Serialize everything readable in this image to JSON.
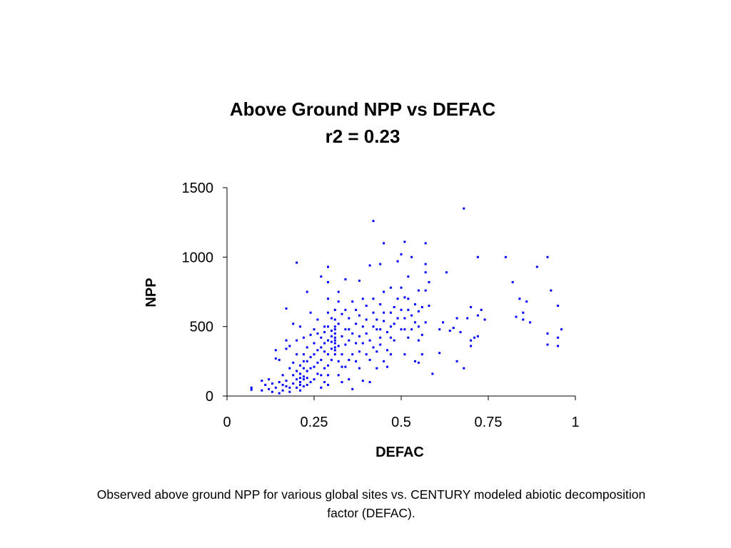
{
  "caption": "Observed above ground NPP for various global sites vs. CENTURY modeled abiotic decomposition factor (DEFAC).",
  "chart_data": {
    "type": "scatter",
    "title": "Above Ground NPP vs DEFAC",
    "subtitle": "r2 = 0.23",
    "xlabel": "DEFAC",
    "ylabel": "NPP",
    "xlim": [
      0,
      1
    ],
    "ylim": [
      0,
      1500
    ],
    "xticks": [
      "0",
      "0.25",
      "0.5",
      "0.75",
      "1"
    ],
    "yticks": [
      "0",
      "500",
      "1000",
      "1500"
    ],
    "grid": false,
    "legend": "none",
    "marker_color": "#0000ff",
    "series": [
      {
        "points": [
          [
            0.07,
            60
          ],
          [
            0.07,
            45
          ],
          [
            0.1,
            40
          ],
          [
            0.1,
            110
          ],
          [
            0.11,
            80
          ],
          [
            0.12,
            50
          ],
          [
            0.12,
            120
          ],
          [
            0.13,
            30
          ],
          [
            0.13,
            90
          ],
          [
            0.14,
            330
          ],
          [
            0.14,
            270
          ],
          [
            0.14,
            60
          ],
          [
            0.15,
            260
          ],
          [
            0.15,
            100
          ],
          [
            0.15,
            20
          ],
          [
            0.16,
            80
          ],
          [
            0.16,
            150
          ],
          [
            0.16,
            40
          ],
          [
            0.17,
            70
          ],
          [
            0.17,
            110
          ],
          [
            0.17,
            400
          ],
          [
            0.17,
            340
          ],
          [
            0.17,
            630
          ],
          [
            0.18,
            360
          ],
          [
            0.18,
            60
          ],
          [
            0.18,
            200
          ],
          [
            0.18,
            30
          ],
          [
            0.19,
            520
          ],
          [
            0.19,
            150
          ],
          [
            0.19,
            240
          ],
          [
            0.19,
            90
          ],
          [
            0.2,
            960
          ],
          [
            0.2,
            300
          ],
          [
            0.2,
            180
          ],
          [
            0.2,
            120
          ],
          [
            0.2,
            60
          ],
          [
            0.2,
            400
          ],
          [
            0.21,
            500
          ],
          [
            0.21,
            100
          ],
          [
            0.21,
            220
          ],
          [
            0.21,
            160
          ],
          [
            0.21,
            40
          ],
          [
            0.21,
            80
          ],
          [
            0.21,
            130
          ],
          [
            0.22,
            140
          ],
          [
            0.22,
            200
          ],
          [
            0.22,
            70
          ],
          [
            0.22,
            300
          ],
          [
            0.22,
            420
          ],
          [
            0.22,
            120
          ],
          [
            0.22,
            250
          ],
          [
            0.23,
            750
          ],
          [
            0.23,
            250
          ],
          [
            0.23,
            130
          ],
          [
            0.23,
            80
          ],
          [
            0.23,
            350
          ],
          [
            0.23,
            180
          ],
          [
            0.24,
            600
          ],
          [
            0.24,
            200
          ],
          [
            0.24,
            440
          ],
          [
            0.24,
            100
          ],
          [
            0.24,
            280
          ],
          [
            0.25,
            480
          ],
          [
            0.25,
            380
          ],
          [
            0.25,
            120
          ],
          [
            0.25,
            210
          ],
          [
            0.25,
            300
          ],
          [
            0.26,
            550
          ],
          [
            0.26,
            330
          ],
          [
            0.26,
            160
          ],
          [
            0.26,
            240
          ],
          [
            0.26,
            450
          ],
          [
            0.27,
            860
          ],
          [
            0.27,
            350
          ],
          [
            0.27,
            260
          ],
          [
            0.27,
            150
          ],
          [
            0.27,
            420
          ],
          [
            0.27,
            60
          ],
          [
            0.28,
            500
          ],
          [
            0.28,
            320
          ],
          [
            0.28,
            200
          ],
          [
            0.28,
            100
          ],
          [
            0.28,
            380
          ],
          [
            0.28,
            460
          ],
          [
            0.29,
            930
          ],
          [
            0.29,
            820
          ],
          [
            0.29,
            700
          ],
          [
            0.29,
            600
          ],
          [
            0.29,
            500
          ],
          [
            0.29,
            400
          ],
          [
            0.29,
            300
          ],
          [
            0.29,
            220
          ],
          [
            0.29,
            150
          ],
          [
            0.29,
            80
          ],
          [
            0.3,
            560
          ],
          [
            0.3,
            470
          ],
          [
            0.3,
            390
          ],
          [
            0.3,
            260
          ],
          [
            0.3,
            340
          ],
          [
            0.3,
            430
          ],
          [
            0.31,
            450
          ],
          [
            0.31,
            420
          ],
          [
            0.31,
            380
          ],
          [
            0.31,
            350
          ],
          [
            0.31,
            500
          ],
          [
            0.31,
            330
          ],
          [
            0.31,
            300
          ],
          [
            0.31,
            550
          ],
          [
            0.31,
            400
          ],
          [
            0.31,
            620
          ],
          [
            0.31,
            480
          ],
          [
            0.32,
            680
          ],
          [
            0.32,
            520
          ],
          [
            0.32,
            360
          ],
          [
            0.32,
            250
          ],
          [
            0.32,
            150
          ],
          [
            0.32,
            750
          ],
          [
            0.33,
            430
          ],
          [
            0.33,
            300
          ],
          [
            0.33,
            210
          ],
          [
            0.33,
            590
          ],
          [
            0.33,
            100
          ],
          [
            0.34,
            840
          ],
          [
            0.34,
            480
          ],
          [
            0.34,
            370
          ],
          [
            0.34,
            210
          ],
          [
            0.34,
            620
          ],
          [
            0.35,
            560
          ],
          [
            0.35,
            400
          ],
          [
            0.35,
            260
          ],
          [
            0.35,
            120
          ],
          [
            0.35,
            480
          ],
          [
            0.36,
            450
          ],
          [
            0.36,
            300
          ],
          [
            0.36,
            50
          ],
          [
            0.36,
            680
          ],
          [
            0.37,
            520
          ],
          [
            0.37,
            380
          ],
          [
            0.37,
            250
          ],
          [
            0.37,
            620
          ],
          [
            0.38,
            830
          ],
          [
            0.38,
            430
          ],
          [
            0.38,
            320
          ],
          [
            0.38,
            200
          ],
          [
            0.38,
            580
          ],
          [
            0.39,
            500
          ],
          [
            0.39,
            380
          ],
          [
            0.39,
            110
          ],
          [
            0.39,
            700
          ],
          [
            0.4,
            450
          ],
          [
            0.4,
            300
          ],
          [
            0.4,
            550
          ],
          [
            0.4,
            650
          ],
          [
            0.41,
            940
          ],
          [
            0.41,
            400
          ],
          [
            0.41,
            260
          ],
          [
            0.41,
            100
          ],
          [
            0.42,
            1260
          ],
          [
            0.42,
            700
          ],
          [
            0.42,
            500
          ],
          [
            0.42,
            350
          ],
          [
            0.42,
            600
          ],
          [
            0.43,
            480
          ],
          [
            0.43,
            320
          ],
          [
            0.43,
            200
          ],
          [
            0.43,
            550
          ],
          [
            0.44,
            950
          ],
          [
            0.44,
            660
          ],
          [
            0.44,
            480
          ],
          [
            0.44,
            370
          ],
          [
            0.44,
            420
          ],
          [
            0.45,
            1100
          ],
          [
            0.45,
            750
          ],
          [
            0.45,
            540
          ],
          [
            0.45,
            250
          ],
          [
            0.45,
            600
          ],
          [
            0.46,
            460
          ],
          [
            0.46,
            330
          ],
          [
            0.46,
            210
          ],
          [
            0.47,
            780
          ],
          [
            0.47,
            500
          ],
          [
            0.47,
            420
          ],
          [
            0.47,
            300
          ],
          [
            0.47,
            600
          ],
          [
            0.48,
            640
          ],
          [
            0.48,
            400
          ],
          [
            0.48,
            520
          ],
          [
            0.49,
            970
          ],
          [
            0.49,
            560
          ],
          [
            0.49,
            700
          ],
          [
            0.5,
            1020
          ],
          [
            0.5,
            780
          ],
          [
            0.5,
            620
          ],
          [
            0.5,
            480
          ],
          [
            0.51,
            1110
          ],
          [
            0.51,
            710
          ],
          [
            0.51,
            480
          ],
          [
            0.51,
            300
          ],
          [
            0.51,
            560
          ],
          [
            0.52,
            860
          ],
          [
            0.52,
            620
          ],
          [
            0.52,
            420
          ],
          [
            0.52,
            700
          ],
          [
            0.53,
            1000
          ],
          [
            0.53,
            580
          ],
          [
            0.53,
            480
          ],
          [
            0.54,
            660
          ],
          [
            0.54,
            530
          ],
          [
            0.54,
            250
          ],
          [
            0.55,
            760
          ],
          [
            0.55,
            610
          ],
          [
            0.55,
            500
          ],
          [
            0.55,
            240
          ],
          [
            0.55,
            400
          ],
          [
            0.56,
            640
          ],
          [
            0.56,
            440
          ],
          [
            0.56,
            300
          ],
          [
            0.57,
            1100
          ],
          [
            0.57,
            950
          ],
          [
            0.57,
            890
          ],
          [
            0.57,
            760
          ],
          [
            0.57,
            530
          ],
          [
            0.58,
            820
          ],
          [
            0.58,
            650
          ],
          [
            0.59,
            160
          ],
          [
            0.61,
            480
          ],
          [
            0.61,
            310
          ],
          [
            0.62,
            530
          ],
          [
            0.63,
            890
          ],
          [
            0.64,
            470
          ],
          [
            0.65,
            490
          ],
          [
            0.66,
            560
          ],
          [
            0.66,
            250
          ],
          [
            0.67,
            460
          ],
          [
            0.68,
            1350
          ],
          [
            0.68,
            200
          ],
          [
            0.69,
            560
          ],
          [
            0.7,
            640
          ],
          [
            0.7,
            360
          ],
          [
            0.7,
            400
          ],
          [
            0.71,
            420
          ],
          [
            0.72,
            430
          ],
          [
            0.72,
            580
          ],
          [
            0.72,
            1000
          ],
          [
            0.73,
            620
          ],
          [
            0.74,
            550
          ],
          [
            0.8,
            1000
          ],
          [
            0.82,
            820
          ],
          [
            0.83,
            570
          ],
          [
            0.84,
            700
          ],
          [
            0.85,
            600
          ],
          [
            0.85,
            550
          ],
          [
            0.86,
            680
          ],
          [
            0.87,
            530
          ],
          [
            0.89,
            930
          ],
          [
            0.92,
            1000
          ],
          [
            0.92,
            450
          ],
          [
            0.93,
            760
          ],
          [
            0.92,
            370
          ],
          [
            0.95,
            650
          ],
          [
            0.95,
            420
          ],
          [
            0.95,
            360
          ],
          [
            0.96,
            480
          ]
        ]
      }
    ]
  }
}
